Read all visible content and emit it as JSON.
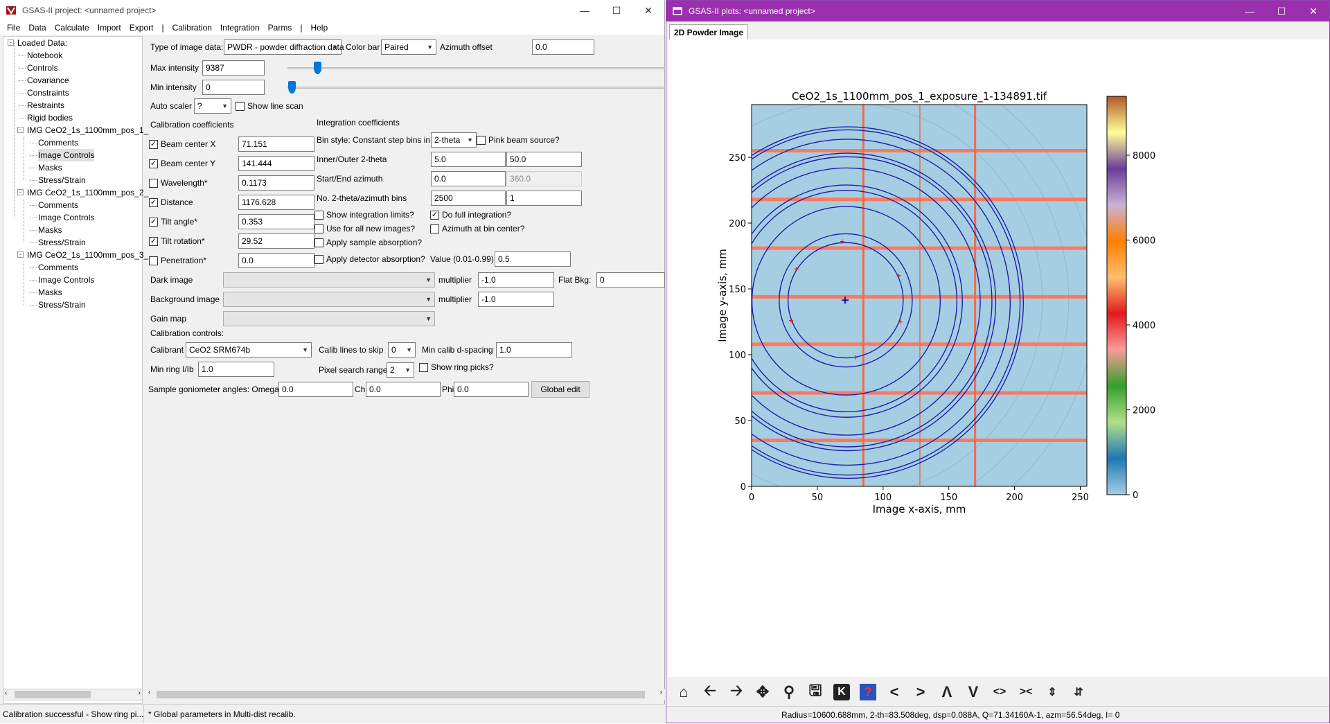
{
  "left": {
    "title": "GSAS-II project: <unnamed project>",
    "menu": [
      "File",
      "Data",
      "Calculate",
      "Import",
      "Export",
      "|",
      "Calibration",
      "Integration",
      "Parms",
      "|",
      "Help"
    ],
    "tree": [
      {
        "label": "Loaded Data:",
        "depth": 0,
        "expander": "-"
      },
      {
        "label": "Notebook",
        "depth": 1
      },
      {
        "label": "Controls",
        "depth": 1
      },
      {
        "label": "Covariance",
        "depth": 1
      },
      {
        "label": "Constraints",
        "depth": 1
      },
      {
        "label": "Restraints",
        "depth": 1
      },
      {
        "label": "Rigid bodies",
        "depth": 1
      },
      {
        "label": "IMG CeO2_1s_1100mm_pos_1_",
        "depth": 1,
        "expander": "-"
      },
      {
        "label": "Comments",
        "depth": 2
      },
      {
        "label": "Image Controls",
        "depth": 2,
        "selected": true
      },
      {
        "label": "Masks",
        "depth": 2
      },
      {
        "label": "Stress/Strain",
        "depth": 2
      },
      {
        "label": "IMG CeO2_1s_1100mm_pos_2_",
        "depth": 1,
        "expander": "-"
      },
      {
        "label": "Comments",
        "depth": 2
      },
      {
        "label": "Image Controls",
        "depth": 2
      },
      {
        "label": "Masks",
        "depth": 2
      },
      {
        "label": "Stress/Strain",
        "depth": 2
      },
      {
        "label": "IMG CeO2_1s_1100mm_pos_3_",
        "depth": 1,
        "expander": "-"
      },
      {
        "label": "Comments",
        "depth": 2
      },
      {
        "label": "Image Controls",
        "depth": 2
      },
      {
        "label": "Masks",
        "depth": 2
      },
      {
        "label": "Stress/Strain",
        "depth": 2
      }
    ],
    "controls": {
      "type_label": "Type of image data:",
      "type_value": "PWDR - powder diffraction data",
      "colorbar_label": "Color bar",
      "colorbar_value": "Paired",
      "azoffset_label": "Azimuth offset",
      "azoffset_value": "0.0",
      "maxint_label": "Max intensity",
      "maxint_value": "9387",
      "minint_label": "Min intensity",
      "minint_value": "0",
      "autoscaler_label": "Auto scaler",
      "autoscaler_value": "?",
      "show_line_scan": "Show line scan",
      "calib_coeff_label": "Calibration coefficients",
      "integ_coeff_label": "Integration coefficients",
      "beam_x_label": "Beam center X",
      "beam_x_value": "71.151",
      "beam_y_label": "Beam center Y",
      "beam_y_value": "141.444",
      "wavelength_label": "Wavelength*",
      "wavelength_value": "0.1173",
      "distance_label": "Distance",
      "distance_value": "1176.628",
      "tilt_label": "Tilt angle*",
      "tilt_value": "0.353",
      "tiltrot_label": "Tilt rotation*",
      "tiltrot_value": "29.52",
      "penetration_label": "Penetration*",
      "penetration_value": "0.0",
      "binstyle_label": "Bin style: Constant step bins in",
      "binstyle_value": "2-theta",
      "pink_beam": "Pink beam source?",
      "inout_label": "Inner/Outer 2-theta",
      "inner_value": "5.0",
      "outer_value": "50.0",
      "startend_label": "Start/End azimuth",
      "start_value": "0.0",
      "end_value": "360.0",
      "nbins_label": "No. 2-theta/azimuth bins",
      "nbins_value": "2500",
      "nazbins_value": "1",
      "show_integ_limits": "Show integration limits?",
      "do_full_integ": "Do full integration?",
      "use_all_new": "Use for all new images?",
      "azimuth_bin_center": "Azimuth at bin center?",
      "sample_absorption": "Apply sample absorption?",
      "detector_absorption": "Apply detector absorption?",
      "value_label": "Value (0.01-0.99)",
      "value_value": "0.5",
      "dark_image_label": "Dark image",
      "multiplier_label": "multiplier",
      "dark_mult_value": "-1.0",
      "flatbkg_label": "Flat Bkg:",
      "flatbkg_value": "0",
      "bg_image_label": "Background image",
      "bg_mult_value": "-1.0",
      "gain_map_label": "Gain map",
      "calib_controls_label": "Calibration controls:",
      "calibrant_label": "Calibrant",
      "calibrant_value": "CeO2  SRM674b",
      "calib_skip_label": "Calib lines to skip",
      "calib_skip_value": "0",
      "min_dspacing_label": "Min calib d-spacing",
      "min_dspacing_value": "1.0",
      "min_ring_label": "Min ring I/Ib",
      "min_ring_value": "1.0",
      "pixel_search_label": "Pixel search range",
      "pixel_search_value": "2",
      "show_ring_picks": "Show ring picks?",
      "goniometer_label": "Sample goniometer angles: Omega",
      "omega_value": "0.0",
      "chi_label": "Chi",
      "chi_value": "0.0",
      "phi_label": "Phi",
      "phi_value": "0.0",
      "global_edit": "Global edit"
    },
    "status": {
      "seg1": "Calibration successful - Show ring pi...",
      "seg2": "* Global parameters in Multi-dist recalib."
    }
  },
  "right": {
    "title": "GSAS-II plots: <unnamed project>",
    "tab": "2D Powder Image",
    "status": "Radius=10600.688mm, 2-th=83.508deg, dsp=0.088A, Q=71.34160A-1, azm=56.54deg, I=    0"
  },
  "chart_data": {
    "type": "heatmap",
    "title": "CeO2_1s_1100mm_pos_1_exposure_1-134891.tif",
    "xlabel": "Image x-axis, mm",
    "ylabel": "Image y-axis, mm",
    "xlim": [
      0,
      255
    ],
    "ylim": [
      0,
      290
    ],
    "xticks": [
      0,
      50,
      100,
      150,
      200,
      250
    ],
    "yticks": [
      0,
      50,
      100,
      150,
      200,
      250
    ],
    "colorbar": {
      "min": 0,
      "max": 9387,
      "ticks": [
        0,
        2000,
        4000,
        6000,
        8000
      ]
    },
    "beam_center": [
      71.151,
      141.444
    ],
    "vertical_gaps_x": [
      85,
      128,
      170
    ],
    "horizontal_gaps_y": [
      255,
      218,
      181,
      144,
      108,
      71,
      35
    ],
    "ring_picks": [
      [
        69,
        186
      ],
      [
        34,
        165
      ],
      [
        112,
        160
      ],
      [
        30,
        126
      ],
      [
        113,
        125
      ],
      [
        79,
        98
      ]
    ],
    "rings": [
      {
        "cx": 71.5,
        "cy": 141.4,
        "r": 43.8
      },
      {
        "cx": 71.6,
        "cy": 141.3,
        "r": 50.6
      },
      {
        "cx": 71.9,
        "cy": 141.0,
        "r": 71.6
      },
      {
        "cx": 72.0,
        "cy": 140.8,
        "r": 84.1
      },
      {
        "cx": 72.1,
        "cy": 140.7,
        "r": 88.2
      },
      {
        "cx": 72.4,
        "cy": 140.4,
        "r": 101.5
      },
      {
        "cx": 72.6,
        "cy": 140.2,
        "r": 110.2
      },
      {
        "cx": 72.7,
        "cy": 140.1,
        "r": 113.0
      },
      {
        "cx": 72.9,
        "cy": 139.9,
        "r": 123.8
      },
      {
        "cx": 73.1,
        "cy": 139.7,
        "r": 131.1
      },
      {
        "cx": 73.2,
        "cy": 139.6,
        "r": 133.5
      }
    ]
  }
}
